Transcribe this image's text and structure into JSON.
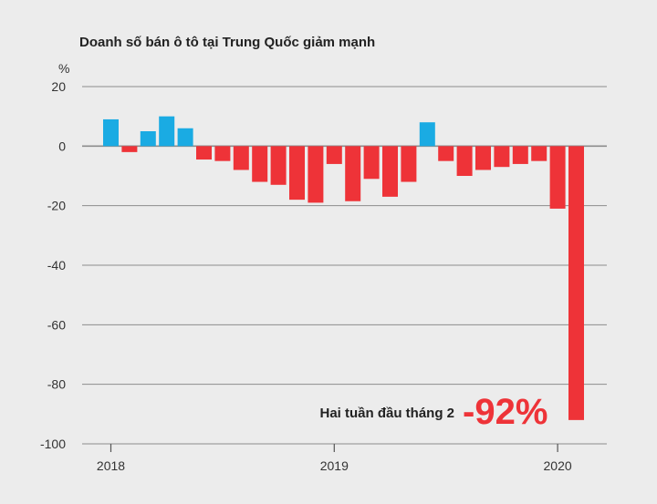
{
  "chart_data": {
    "type": "bar",
    "title": "Doanh số bán ô tô tại Trung Quốc giảm mạnh",
    "ylabel": "%",
    "xlabel": "",
    "ylim": [
      -100,
      20
    ],
    "yticks": [
      "20",
      "0",
      "-20",
      "-40",
      "-60",
      "-80",
      "-100"
    ],
    "yticks_values": [
      20,
      0,
      -20,
      -40,
      -60,
      -80,
      -100
    ],
    "xticks": [
      {
        "label": "2018",
        "index": 0
      },
      {
        "label": "2019",
        "index": 12
      },
      {
        "label": "2020",
        "index": 24
      }
    ],
    "grid": true,
    "colors": {
      "positive": "#1aabe3",
      "negative": "#ee3338",
      "grid": "#8c8c8c",
      "axis": "#555555"
    },
    "months": [
      "2018-01",
      "2018-02",
      "2018-03",
      "2018-04",
      "2018-05",
      "2018-06",
      "2018-07",
      "2018-08",
      "2018-09",
      "2018-10",
      "2018-11",
      "2018-12",
      "2019-01",
      "2019-02",
      "2019-03",
      "2019-04",
      "2019-05",
      "2019-06",
      "2019-07",
      "2019-08",
      "2019-09",
      "2019-10",
      "2019-11",
      "2019-12",
      "2020-01",
      "2020-02"
    ],
    "values": [
      9,
      -2,
      5,
      10,
      6,
      -4.5,
      -5,
      -8,
      -12,
      -13,
      -18,
      -19,
      -6,
      -18.5,
      -11,
      -17,
      -12,
      8,
      -5,
      -10,
      -8,
      -7,
      -6,
      -5,
      -21,
      -92
    ],
    "annotation": {
      "label": "Hai tuần đầu tháng 2",
      "value": "-92%",
      "color": "#ee3338"
    }
  }
}
